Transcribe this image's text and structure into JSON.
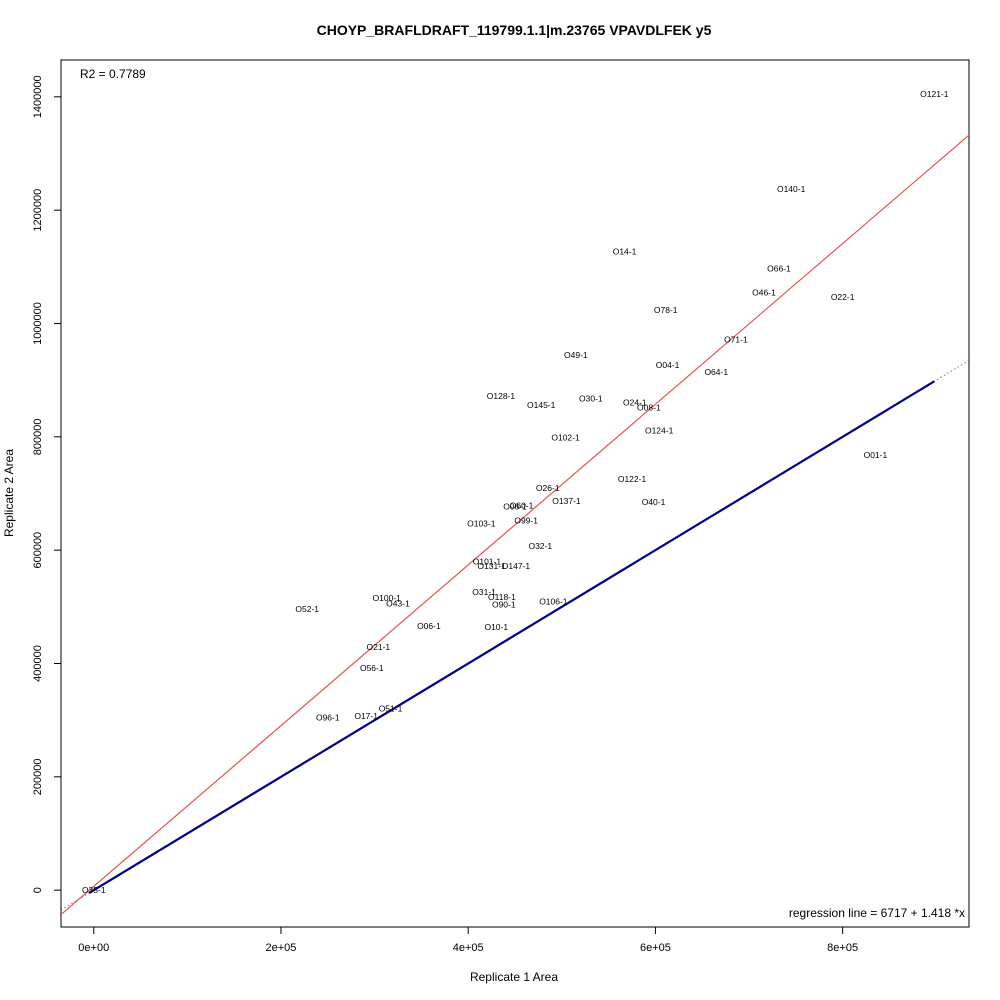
{
  "chart_data": {
    "type": "scatter",
    "title": "CHOYP_BRAFLDRAFT_119799.1.1|m.23765 VPAVDLFEK y5",
    "xlabel": "Replicate 1 Area",
    "ylabel": "Replicate 2 Area",
    "xlim": [
      -35000,
      935000
    ],
    "ylim": [
      -65000,
      1465000
    ],
    "x_ticks": [
      0,
      200000,
      400000,
      600000,
      800000
    ],
    "x_tick_labels": [
      "0e+00",
      "2e+05",
      "4e+05",
      "6e+05",
      "8e+05"
    ],
    "y_ticks": [
      0,
      200000,
      400000,
      600000,
      800000,
      1000000,
      1200000,
      1400000
    ],
    "y_tick_labels": [
      "0",
      "200000",
      "400000",
      "600000",
      "800000",
      "1000000",
      "1200000",
      "1400000"
    ],
    "r2_text": "R2 = 0.7789",
    "regression_text": "regression line = 6717 + 1.418 *x",
    "regression": {
      "intercept": 6717,
      "slope": 1.418,
      "color": "#e8534f"
    },
    "identity_segment": {
      "x0": -5000,
      "x1": 898000,
      "color": "#00008b"
    },
    "dotted_identity": {
      "color": "#5b6fd6"
    },
    "points": [
      {
        "label": "O121-1",
        "x": 898000,
        "y": 1405000
      },
      {
        "label": "O140-1",
        "x": 745000,
        "y": 1237000
      },
      {
        "label": "O14-1",
        "x": 567000,
        "y": 1127000
      },
      {
        "label": "O66-1",
        "x": 732000,
        "y": 1097000
      },
      {
        "label": "O46-1",
        "x": 716000,
        "y": 1055000
      },
      {
        "label": "O22-1",
        "x": 800000,
        "y": 1047000
      },
      {
        "label": "O78-1",
        "x": 611000,
        "y": 1024000
      },
      {
        "label": "O71-1",
        "x": 686000,
        "y": 972000
      },
      {
        "label": "O49-1",
        "x": 515000,
        "y": 944000
      },
      {
        "label": "O04-1",
        "x": 613000,
        "y": 927000
      },
      {
        "label": "O64-1",
        "x": 665000,
        "y": 914000
      },
      {
        "label": "O128-1",
        "x": 435000,
        "y": 872000
      },
      {
        "label": "O30-1",
        "x": 531000,
        "y": 868000
      },
      {
        "label": "O24-1",
        "x": 578000,
        "y": 861000
      },
      {
        "label": "O145-1",
        "x": 478000,
        "y": 856000
      },
      {
        "label": "O08-1",
        "x": 593000,
        "y": 852000
      },
      {
        "label": "O124-1",
        "x": 604000,
        "y": 811000
      },
      {
        "label": "O102-1",
        "x": 504000,
        "y": 799000
      },
      {
        "label": "O01-1",
        "x": 835000,
        "y": 768000
      },
      {
        "label": "O122-1",
        "x": 575000,
        "y": 726000
      },
      {
        "label": "O26-1",
        "x": 485000,
        "y": 710000
      },
      {
        "label": "O137-1",
        "x": 505000,
        "y": 687000
      },
      {
        "label": "O40-1",
        "x": 598000,
        "y": 685000
      },
      {
        "label": "O06-1",
        "x": 450000,
        "y": 677000
      },
      {
        "label": "O60-1",
        "x": 457000,
        "y": 679000
      },
      {
        "label": "O99-1",
        "x": 462000,
        "y": 652000
      },
      {
        "label": "O103-1",
        "x": 414000,
        "y": 647000
      },
      {
        "label": "O32-1",
        "x": 477000,
        "y": 607000
      },
      {
        "label": "O101-1",
        "x": 420000,
        "y": 580000
      },
      {
        "label": "O131-1",
        "x": 425000,
        "y": 572000
      },
      {
        "label": "O147-1",
        "x": 451000,
        "y": 572000
      },
      {
        "label": "O31-1",
        "x": 417000,
        "y": 526000
      },
      {
        "label": "O118-1",
        "x": 436000,
        "y": 517000
      },
      {
        "label": "O90-1",
        "x": 438000,
        "y": 504000
      },
      {
        "label": "O106-1",
        "x": 491000,
        "y": 509000
      },
      {
        "label": "O100-1",
        "x": 313000,
        "y": 516000
      },
      {
        "label": "O43-1",
        "x": 325000,
        "y": 506000
      },
      {
        "label": "O52-1",
        "x": 228000,
        "y": 496000
      },
      {
        "label": "O06-1",
        "x": 358000,
        "y": 466000
      },
      {
        "label": "O10-1",
        "x": 430000,
        "y": 464000
      },
      {
        "label": "O21-1",
        "x": 304000,
        "y": 429000
      },
      {
        "label": "O56-1",
        "x": 297000,
        "y": 392000
      },
      {
        "label": "O96-1",
        "x": 250000,
        "y": 305000
      },
      {
        "label": "O17-1",
        "x": 291000,
        "y": 307000
      },
      {
        "label": "O51-1",
        "x": 317000,
        "y": 321000
      },
      {
        "label": "O35-1",
        "x": 0,
        "y": 0
      }
    ]
  }
}
